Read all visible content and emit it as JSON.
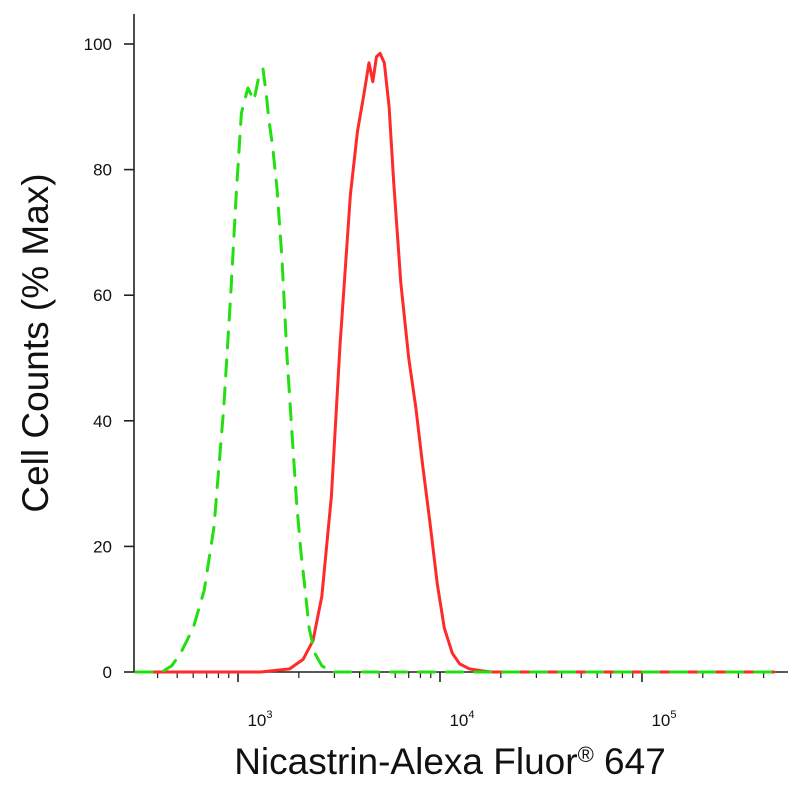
{
  "chart_data": {
    "type": "line",
    "xlabel": "Nicastrin-Alexa Fluor",
    "xlabel_mark": "®",
    "xlabel_suffix": " 647",
    "ylabel": "Cell Counts (% Max)",
    "xscale": "log",
    "xlim": [
      250,
      450000
    ],
    "ylim": [
      0,
      105
    ],
    "y_ticks": [
      0,
      20,
      40,
      60,
      80,
      100
    ],
    "x_ticks": [
      {
        "value": 1000,
        "base": "10",
        "exp": "3"
      },
      {
        "value": 10000,
        "base": "10",
        "exp": "4"
      },
      {
        "value": 100000,
        "base": "10",
        "exp": "5"
      }
    ],
    "grid": false,
    "legend": "none",
    "series": [
      {
        "color": "#ff2a2a",
        "style": "solid",
        "x": [
          250,
          1300,
          1800,
          2100,
          2350,
          2600,
          2900,
          3200,
          3600,
          3900,
          4200,
          4450,
          4650,
          4850,
          5050,
          5300,
          5600,
          5900,
          6400,
          7000,
          7600,
          8200,
          8900,
          9700,
          10500,
          11500,
          12500,
          14000,
          16000,
          18000,
          22000,
          450000
        ],
        "y": [
          0,
          0,
          0.5,
          2,
          5,
          12,
          28,
          52,
          76,
          86,
          92,
          97,
          94,
          98,
          98.5,
          97,
          90,
          78,
          62,
          50,
          42,
          33,
          24,
          14,
          7,
          3,
          1.3,
          0.5,
          0.2,
          0,
          0,
          0
        ]
      },
      {
        "color": "#22e010",
        "style": "dashed",
        "x": [
          250,
          420,
          470,
          520,
          600,
          680,
          760,
          850,
          920,
          980,
          1040,
          1120,
          1200,
          1270,
          1330,
          1380,
          1420,
          1480,
          1560,
          1650,
          1750,
          1850,
          1950,
          2050,
          2150,
          2250,
          2400,
          2600,
          2900,
          450000
        ],
        "y": [
          0,
          0,
          1,
          3,
          7,
          13,
          23,
          42,
          60,
          76,
          89,
          93,
          91,
          95,
          96,
          92,
          88,
          84,
          77,
          66,
          50,
          38,
          27,
          19,
          13,
          7,
          3,
          1,
          0,
          0
        ]
      }
    ]
  }
}
